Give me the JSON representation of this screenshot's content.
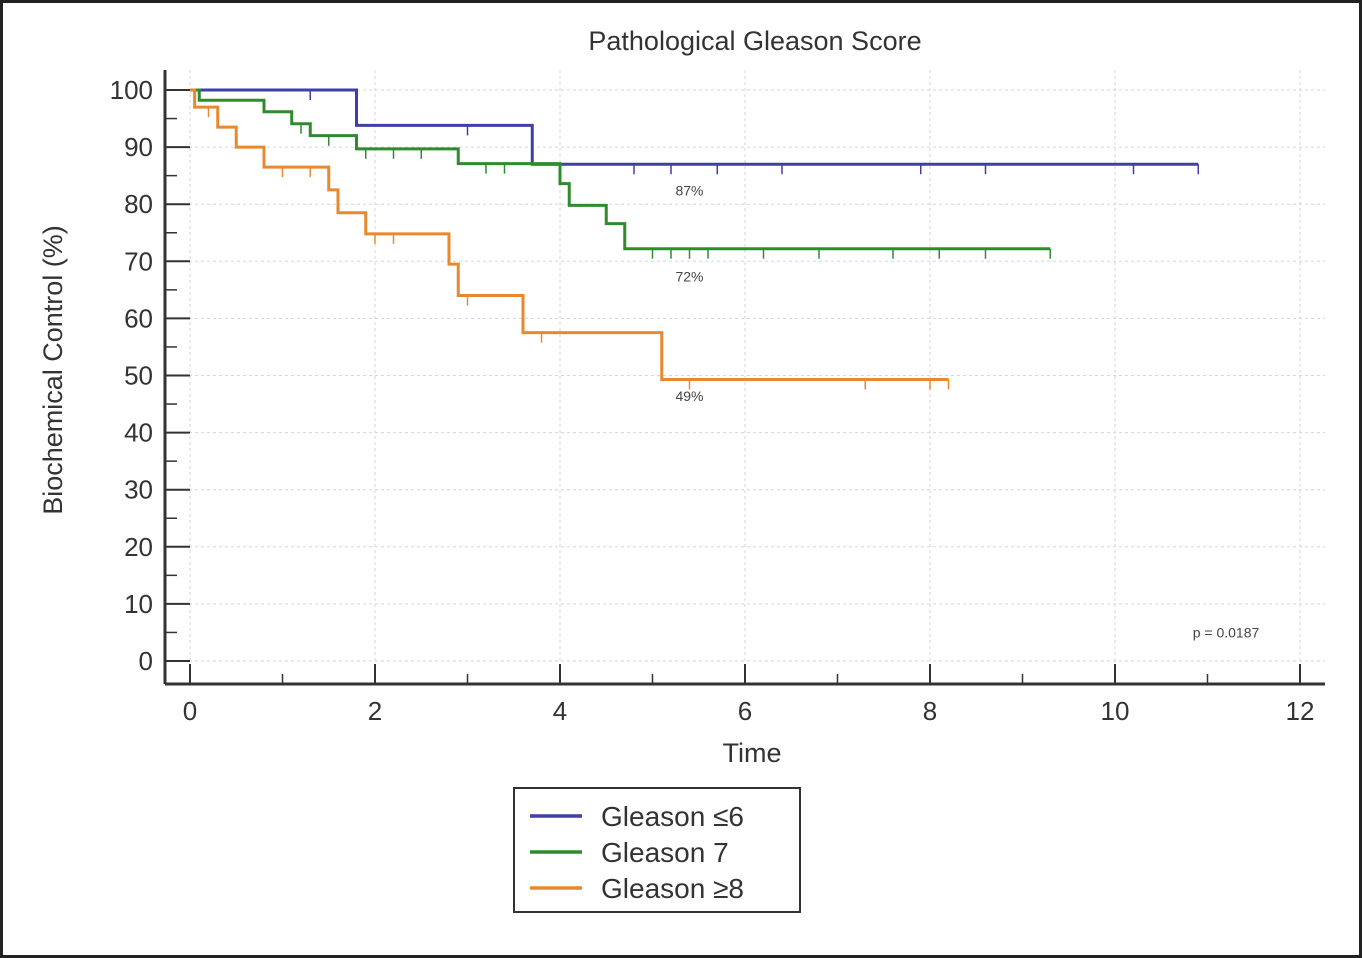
{
  "chart_data": {
    "type": "line",
    "title": "Pathological Gleason Score",
    "xlabel": "Time",
    "ylabel": "Biochemical Control (%)",
    "xlim": [
      0,
      12
    ],
    "ylim": [
      0,
      100
    ],
    "x_ticks": [
      "0",
      "2",
      "4",
      "6",
      "8",
      "10",
      "12"
    ],
    "y_ticks": [
      "0",
      "10",
      "20",
      "30",
      "40",
      "50",
      "60",
      "70",
      "80",
      "90",
      "100"
    ],
    "grid": true,
    "legend_position": "bottom-center",
    "series": [
      {
        "name": "Gleason ≤6",
        "color": "#3f3fa6",
        "steps": [
          [
            0,
            100
          ],
          [
            1.8,
            93.8
          ],
          [
            3.7,
            87
          ],
          [
            10.9,
            87
          ]
        ],
        "censored": [
          [
            1.3,
            100
          ],
          [
            3.0,
            93.8
          ],
          [
            4.8,
            87
          ],
          [
            5.2,
            87
          ],
          [
            5.7,
            87
          ],
          [
            6.4,
            87
          ],
          [
            7.9,
            87
          ],
          [
            8.6,
            87
          ],
          [
            10.2,
            87
          ],
          [
            10.9,
            87
          ]
        ]
      },
      {
        "name": "Gleason 7",
        "color": "#2e8b2e",
        "steps": [
          [
            0,
            100
          ],
          [
            0.1,
            98.2
          ],
          [
            0.8,
            96.2
          ],
          [
            1.1,
            94.1
          ],
          [
            1.3,
            92.0
          ],
          [
            1.8,
            89.7
          ],
          [
            2.9,
            87.1
          ],
          [
            4.0,
            83.6
          ],
          [
            4.1,
            79.8
          ],
          [
            4.5,
            76.6
          ],
          [
            4.7,
            72.2
          ],
          [
            9.3,
            72.2
          ]
        ],
        "censored": [
          [
            1.2,
            94.1
          ],
          [
            1.5,
            92.0
          ],
          [
            1.9,
            89.7
          ],
          [
            2.2,
            89.7
          ],
          [
            2.5,
            89.7
          ],
          [
            3.2,
            87.1
          ],
          [
            3.4,
            87.1
          ],
          [
            5.0,
            72.2
          ],
          [
            5.2,
            72.2
          ],
          [
            5.4,
            72.2
          ],
          [
            5.6,
            72.2
          ],
          [
            6.2,
            72.2
          ],
          [
            6.8,
            72.2
          ],
          [
            7.6,
            72.2
          ],
          [
            8.1,
            72.2
          ],
          [
            8.6,
            72.2
          ],
          [
            9.3,
            72.2
          ]
        ]
      },
      {
        "name": "Gleason ≥8",
        "color": "#e8892f",
        "steps": [
          [
            0,
            100
          ],
          [
            0.05,
            97.0
          ],
          [
            0.3,
            93.5
          ],
          [
            0.5,
            90.0
          ],
          [
            0.8,
            86.5
          ],
          [
            1.5,
            82.5
          ],
          [
            1.6,
            78.5
          ],
          [
            1.9,
            74.8
          ],
          [
            2.8,
            69.5
          ],
          [
            2.9,
            64.0
          ],
          [
            3.6,
            57.5
          ],
          [
            5.1,
            49.3
          ],
          [
            8.2,
            49.3
          ]
        ],
        "censored": [
          [
            0.2,
            97.0
          ],
          [
            1.0,
            86.5
          ],
          [
            1.3,
            86.5
          ],
          [
            2.0,
            74.8
          ],
          [
            2.2,
            74.8
          ],
          [
            3.0,
            64.0
          ],
          [
            3.8,
            57.5
          ],
          [
            5.4,
            49.3
          ],
          [
            7.3,
            49.3
          ],
          [
            8.0,
            49.3
          ],
          [
            8.2,
            49.3
          ]
        ]
      }
    ],
    "annotations": [
      {
        "text": "87%",
        "x": 5.4,
        "y": 81.5
      },
      {
        "text": "72%",
        "x": 5.4,
        "y": 66.5
      },
      {
        "text": "49%",
        "x": 5.4,
        "y": 45.5
      },
      {
        "text": "p = 0.0187",
        "x": 11.2,
        "y": 4.1
      }
    ]
  }
}
